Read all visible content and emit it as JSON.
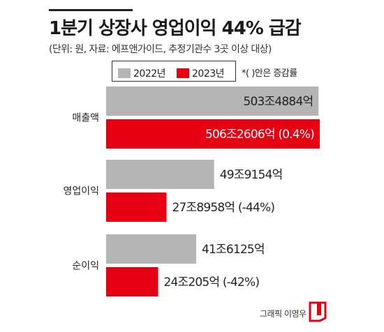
{
  "header": {
    "title": "1분기 상장사 영업이익 44% 급감",
    "subtitle": "(단위: 원, 자료: 에프앤가이드, 추정기관수 3곳 이상 대상)"
  },
  "legend": {
    "items": [
      "2022년",
      "2023년"
    ],
    "note": "*(  )안은 증감률"
  },
  "footer": {
    "credit": "그래픽 이영우"
  },
  "colors": {
    "series_2022": "#b5b5b5",
    "series_2023": "#e60012",
    "label_dark": "#222222",
    "label_light": "#ffffff"
  },
  "chart_data": {
    "type": "bar",
    "orientation": "horizontal",
    "categories": [
      "매출액",
      "영업이익",
      "순이익"
    ],
    "series": [
      {
        "name": "2022년",
        "values": [
          503.4884,
          49.9154,
          41.6125
        ]
      },
      {
        "name": "2023년",
        "values": [
          506.2606,
          27.8958,
          24.0205
        ]
      }
    ],
    "labels": [
      [
        "503조4884억",
        "49조9154억",
        "41조6125억"
      ],
      [
        "506조2606억 (0.4%)",
        "27조8958억 (-44%)",
        "24조205억 (-42%)"
      ]
    ],
    "units": "조원",
    "scale_break": true
  }
}
